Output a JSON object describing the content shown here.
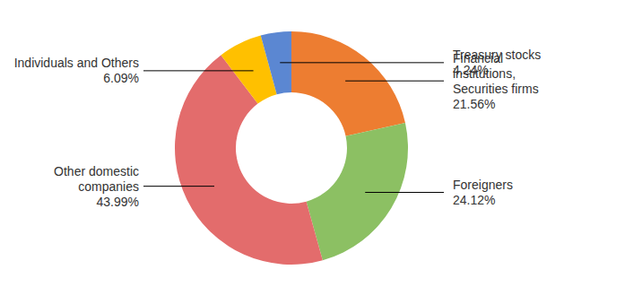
{
  "chart_data": {
    "type": "pie",
    "categories": [
      "Financial institutions, Securities firms",
      "Foreigners",
      "Other domestic companies",
      "Individuals and Others",
      "Treasury stocks"
    ],
    "values": [
      21.56,
      24.12,
      43.99,
      6.09,
      4.24
    ],
    "value_labels": [
      "21.56%",
      "24.12%",
      "43.99%",
      "6.09%",
      "4.24%"
    ],
    "colors": [
      "#ED7D31",
      "#8CC063",
      "#E36C6C",
      "#FFC000",
      "#5B87D2"
    ],
    "data_labels": true
  }
}
